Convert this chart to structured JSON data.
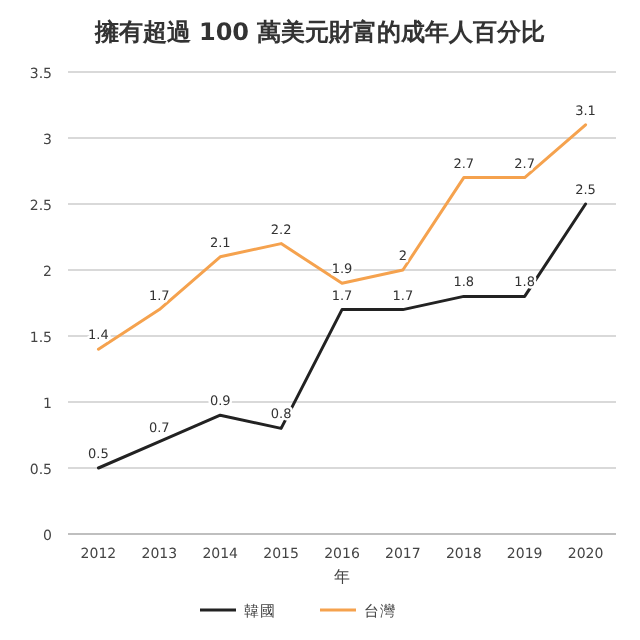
{
  "chart_data": {
    "type": "line",
    "title": "擁有超過 100 萬美元財富的成年人百分比",
    "xlabel": "年",
    "categories": [
      "2012",
      "2013",
      "2014",
      "2015",
      "2016",
      "2017",
      "2018",
      "2019",
      "2020"
    ],
    "series": [
      {
        "name": "韓國",
        "color": "#222222",
        "values": [
          0.5,
          0.7,
          0.9,
          0.8,
          1.7,
          1.7,
          1.8,
          1.8,
          2.5
        ]
      },
      {
        "name": "台灣",
        "color": "#f5a24e",
        "values": [
          1.4,
          1.7,
          2.1,
          2.2,
          1.9,
          2,
          2.7,
          2.7,
          3.1
        ]
      }
    ],
    "ylim": [
      0,
      3.5
    ],
    "yticks": [
      0,
      0.5,
      1,
      1.5,
      2,
      2.5,
      3,
      3.5
    ],
    "grid": "y",
    "legend": "bottom",
    "data_labels": true,
    "marker": "none",
    "line_style": "solid"
  }
}
